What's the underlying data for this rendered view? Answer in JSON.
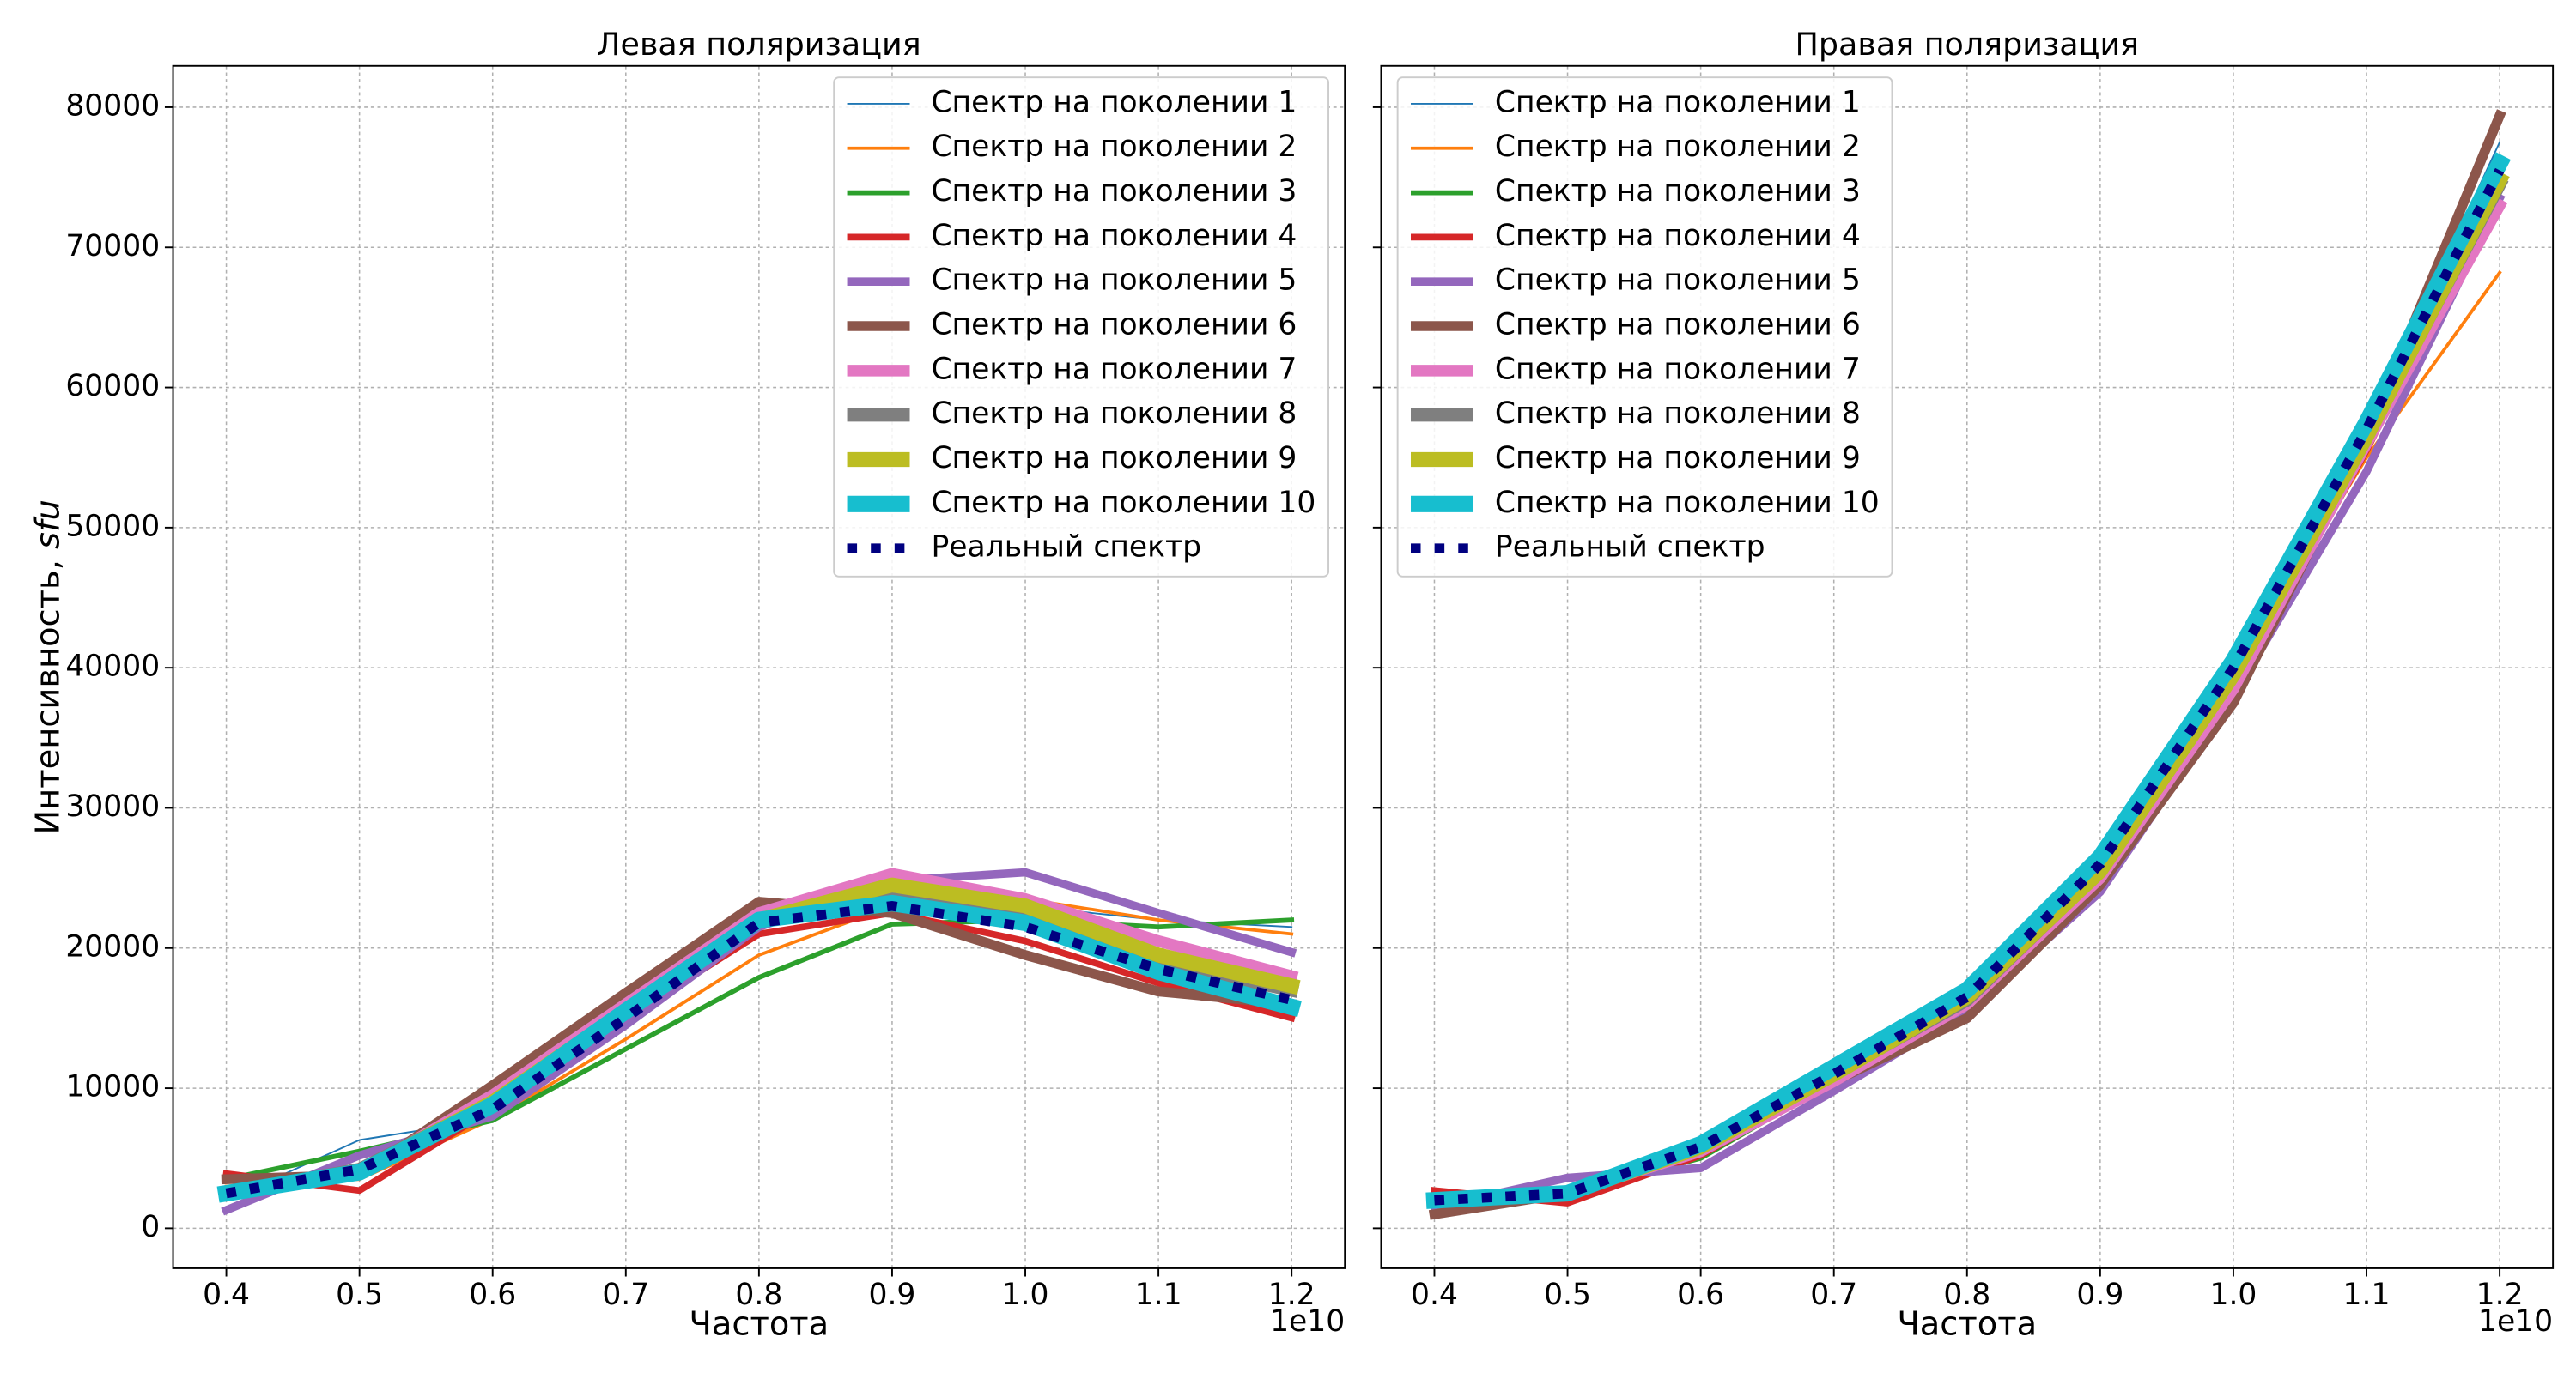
{
  "chart_data": [
    {
      "type": "line",
      "title": "Левая поляризация",
      "xlabel": "Частота",
      "x_offset_label": "1e10",
      "ylabel": "Интенсивность, ",
      "ylabel_unit": "sfu",
      "x": [
        4000000000,
        5000000000,
        6000000000,
        7000000000,
        8000000000,
        9000000000,
        10000000000,
        11000000000,
        12000000000
      ],
      "xlim": [
        3600000000,
        12400000000
      ],
      "xticks": [
        {
          "value": 4000000000,
          "label": "0.4"
        },
        {
          "value": 5000000000,
          "label": "0.5"
        },
        {
          "value": 6000000000,
          "label": "0.6"
        },
        {
          "value": 7000000000,
          "label": "0.7"
        },
        {
          "value": 8000000000,
          "label": "0.8"
        },
        {
          "value": 9000000000,
          "label": "0.9"
        },
        {
          "value": 10000000000,
          "label": "1.0"
        },
        {
          "value": 11000000000,
          "label": "1.1"
        },
        {
          "value": 12000000000,
          "label": "1.2"
        }
      ],
      "ylim": [
        -2850,
        82950
      ],
      "yticks": [
        0,
        10000,
        20000,
        30000,
        40000,
        50000,
        60000,
        70000,
        80000
      ],
      "grid": true,
      "legend": "upper right",
      "show_ytick_labels": true,
      "series": [
        {
          "name": "Спектр на поколении 1",
          "color": "#1f77b4",
          "linewidth": 1,
          "values": [
            2000,
            6300,
            7800,
            15000,
            22000,
            22500,
            23000,
            22000,
            21500
          ]
        },
        {
          "name": "Спектр на поколении 2",
          "color": "#ff7f0e",
          "linewidth": 2,
          "values": [
            3000,
            3500,
            7800,
            13500,
            19500,
            23000,
            23500,
            22000,
            21000
          ]
        },
        {
          "name": "Спектр на поколении 3",
          "color": "#2ca02c",
          "linewidth": 3,
          "values": [
            3500,
            5500,
            7700,
            12800,
            17900,
            21700,
            22000,
            21500,
            22000
          ]
        },
        {
          "name": "Спектр на поколении 4",
          "color": "#d62728",
          "linewidth": 4,
          "values": [
            3900,
            2700,
            8500,
            15000,
            21000,
            22500,
            20500,
            17500,
            15000
          ]
        },
        {
          "name": "Спектр на поколении 5",
          "color": "#9467bd",
          "linewidth": 5,
          "values": [
            1300,
            5200,
            8000,
            14500,
            21500,
            24800,
            25400,
            22500,
            19700
          ]
        },
        {
          "name": "Спектр на поколении 6",
          "color": "#8c564b",
          "linewidth": 6,
          "values": [
            3500,
            3800,
            10200,
            16800,
            23300,
            22500,
            19500,
            16900,
            16000
          ]
        },
        {
          "name": "Спектр на поколении 7",
          "color": "#e377c2",
          "linewidth": 7,
          "values": [
            2500,
            4000,
            9500,
            16000,
            22500,
            25300,
            23500,
            20500,
            18000
          ]
        },
        {
          "name": "Спектр на поколении 8",
          "color": "#7f7f7f",
          "linewidth": 8,
          "values": [
            2500,
            4200,
            9000,
            15500,
            22000,
            23500,
            22500,
            19000,
            17000
          ]
        },
        {
          "name": "Спектр на поколении 9",
          "color": "#bcbd22",
          "linewidth": 9,
          "values": [
            2500,
            4000,
            9000,
            15500,
            22000,
            24500,
            23000,
            19500,
            17300
          ]
        },
        {
          "name": "Спектр на поколении 10",
          "color": "#17becf",
          "linewidth": 10,
          "values": [
            2500,
            4000,
            8800,
            15500,
            22000,
            23200,
            21800,
            18300,
            15800
          ]
        },
        {
          "name": "Реальный спектр",
          "color": "#000080",
          "linewidth": 6,
          "linestyle": "dotted",
          "values": [
            2500,
            4200,
            8500,
            15000,
            21800,
            23000,
            21500,
            18500,
            16300
          ]
        }
      ]
    },
    {
      "type": "line",
      "title": "Правая поляризация",
      "xlabel": "Частота",
      "x_offset_label": "1e10",
      "x": [
        4000000000,
        5000000000,
        6000000000,
        7000000000,
        8000000000,
        9000000000,
        10000000000,
        11000000000,
        12000000000
      ],
      "xlim": [
        3600000000,
        12400000000
      ],
      "xticks": [
        {
          "value": 4000000000,
          "label": "0.4"
        },
        {
          "value": 5000000000,
          "label": "0.5"
        },
        {
          "value": 6000000000,
          "label": "0.6"
        },
        {
          "value": 7000000000,
          "label": "0.7"
        },
        {
          "value": 8000000000,
          "label": "0.8"
        },
        {
          "value": 9000000000,
          "label": "0.9"
        },
        {
          "value": 10000000000,
          "label": "1.0"
        },
        {
          "value": 11000000000,
          "label": "1.1"
        },
        {
          "value": 12000000000,
          "label": "1.2"
        }
      ],
      "ylim": [
        -2850,
        82950
      ],
      "yticks": [
        0,
        10000,
        20000,
        30000,
        40000,
        50000,
        60000,
        70000,
        80000
      ],
      "grid": true,
      "legend": "upper left",
      "show_ytick_labels": false,
      "series": [
        {
          "name": "Спектр на поколении 1",
          "color": "#1f77b4",
          "linewidth": 1,
          "values": [
            2000,
            2500,
            5500,
            11000,
            16500,
            26000,
            40000,
            57000,
            77500
          ]
        },
        {
          "name": "Спектр на поколении 2",
          "color": "#ff7f0e",
          "linewidth": 2,
          "values": [
            2500,
            2200,
            5500,
            11000,
            16000,
            25500,
            39500,
            55000,
            68200
          ]
        },
        {
          "name": "Спектр на поколении 3",
          "color": "#2ca02c",
          "linewidth": 3,
          "values": [
            2000,
            2500,
            5000,
            10500,
            16000,
            25000,
            39000,
            56000,
            75000
          ]
        },
        {
          "name": "Спектр на поколении 4",
          "color": "#d62728",
          "linewidth": 4,
          "values": [
            2700,
            1800,
            5200,
            10500,
            15500,
            25000,
            38500,
            55500,
            74500
          ]
        },
        {
          "name": "Спектр на поколении 5",
          "color": "#9467bd",
          "linewidth": 5,
          "values": [
            1500,
            3600,
            4300,
            9800,
            15500,
            24000,
            38000,
            54000,
            73500
          ]
        },
        {
          "name": "Спектр на поколении 6",
          "color": "#8c564b",
          "linewidth": 6,
          "values": [
            1000,
            2500,
            5500,
            10500,
            15000,
            24500,
            37500,
            56500,
            79400
          ]
        },
        {
          "name": "Спектр на поколении 7",
          "color": "#e377c2",
          "linewidth": 7,
          "values": [
            2000,
            2500,
            5500,
            10500,
            16000,
            25000,
            38500,
            56000,
            73000
          ]
        },
        {
          "name": "Спектр на поколении 8",
          "color": "#7f7f7f",
          "linewidth": 8,
          "values": [
            2000,
            2500,
            5800,
            11000,
            16300,
            25500,
            39500,
            56500,
            74500
          ]
        },
        {
          "name": "Спектр на поколении 9",
          "color": "#bcbd22",
          "linewidth": 9,
          "values": [
            2000,
            2500,
            5800,
            11000,
            16500,
            25500,
            39500,
            56500,
            74800
          ]
        },
        {
          "name": "Спектр на поколении 10",
          "color": "#17becf",
          "linewidth": 10,
          "values": [
            2000,
            2500,
            6000,
            11500,
            17000,
            26500,
            40500,
            57500,
            76000
          ]
        },
        {
          "name": "Реальный спектр",
          "color": "#000080",
          "linewidth": 6,
          "linestyle": "dotted",
          "values": [
            2000,
            2500,
            5800,
            11000,
            16500,
            26000,
            40000,
            57000,
            75500
          ]
        }
      ]
    }
  ]
}
